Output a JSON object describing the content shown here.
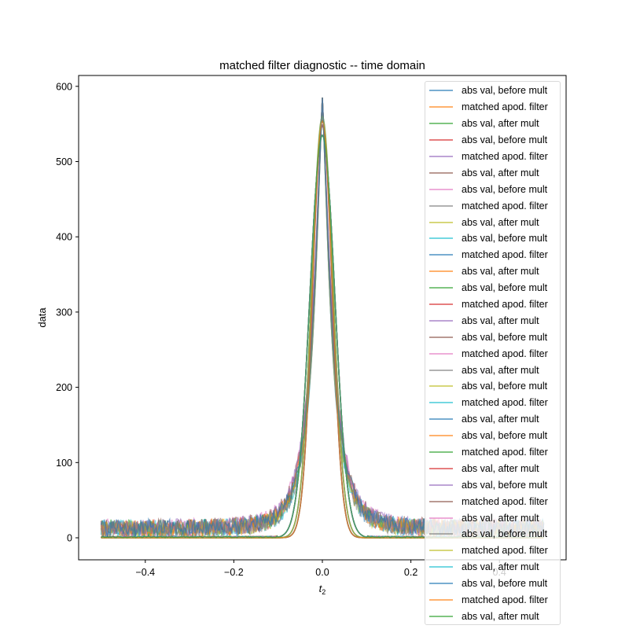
{
  "chart_data": {
    "type": "line",
    "title": "matched filter diagnostic -- time domain",
    "xlabel": "t_2",
    "ylabel": "data",
    "xlim": [
      -0.55,
      0.55
    ],
    "ylim": [
      -30,
      615
    ],
    "xticks": [
      -0.4,
      -0.2,
      0.0,
      0.2,
      0.4
    ],
    "xtick_labels": [
      "−0.4",
      "−0.2",
      "0.0",
      "0.2",
      "0.4"
    ],
    "yticks": [
      0,
      100,
      200,
      300,
      400,
      500,
      600
    ],
    "ytick_labels": [
      "0",
      "100",
      "200",
      "300",
      "400",
      "500",
      "600"
    ],
    "grid": false,
    "legend_position": "upper right (overflowing below axes)",
    "description": "11 repeated groups of 3 traces each; noisy Lorentzian-like 'abs val' traces peaking ~585 at t2=0 with noise floor ~0-30, and smooth Gaussian 'matched apod. filter' traces peaking ~540-560 with half width ~0.03-0.05",
    "x_range_data": [
      -0.5,
      0.5
    ],
    "series_template": [
      {
        "name": "abs val, before mult",
        "peak": 585,
        "center": 0.0,
        "shape": "noisy lorentzian",
        "noise_floor": [
          0,
          30
        ]
      },
      {
        "name": "matched apod. filter",
        "peak": 560,
        "center": 0.0,
        "shape": "gaussian",
        "sigma": 0.025
      },
      {
        "name": "abs val, after mult",
        "peak": 535,
        "center": 0.0,
        "shape": "gaussian-like",
        "sigma": 0.03
      }
    ],
    "series": [
      {
        "name": "abs val, before mult",
        "color": "#1f77b4"
      },
      {
        "name": "matched apod. filter",
        "color": "#ff7f0e"
      },
      {
        "name": "abs val, after mult",
        "color": "#2ca02c"
      },
      {
        "name": "abs val, before mult",
        "color": "#d62728"
      },
      {
        "name": "matched apod. filter",
        "color": "#9467bd"
      },
      {
        "name": "abs val, after mult",
        "color": "#8c564b"
      },
      {
        "name": "abs val, before mult",
        "color": "#e377c2"
      },
      {
        "name": "matched apod. filter",
        "color": "#7f7f7f"
      },
      {
        "name": "abs val, after mult",
        "color": "#bcbd22"
      },
      {
        "name": "abs val, before mult",
        "color": "#17becf"
      },
      {
        "name": "matched apod. filter",
        "color": "#1f77b4"
      },
      {
        "name": "abs val, after mult",
        "color": "#ff7f0e"
      },
      {
        "name": "abs val, before mult",
        "color": "#2ca02c"
      },
      {
        "name": "matched apod. filter",
        "color": "#d62728"
      },
      {
        "name": "abs val, after mult",
        "color": "#9467bd"
      },
      {
        "name": "abs val, before mult",
        "color": "#8c564b"
      },
      {
        "name": "matched apod. filter",
        "color": "#e377c2"
      },
      {
        "name": "abs val, after mult",
        "color": "#7f7f7f"
      },
      {
        "name": "abs val, before mult",
        "color": "#bcbd22"
      },
      {
        "name": "matched apod. filter",
        "color": "#17becf"
      },
      {
        "name": "abs val, after mult",
        "color": "#1f77b4"
      },
      {
        "name": "abs val, before mult",
        "color": "#ff7f0e"
      },
      {
        "name": "matched apod. filter",
        "color": "#2ca02c"
      },
      {
        "name": "abs val, after mult",
        "color": "#d62728"
      },
      {
        "name": "abs val, before mult",
        "color": "#9467bd"
      },
      {
        "name": "matched apod. filter",
        "color": "#8c564b"
      },
      {
        "name": "abs val, after mult",
        "color": "#e377c2"
      },
      {
        "name": "abs val, before mult",
        "color": "#7f7f7f"
      },
      {
        "name": "matched apod. filter",
        "color": "#bcbd22"
      },
      {
        "name": "abs val, after mult",
        "color": "#17becf"
      },
      {
        "name": "abs val, before mult",
        "color": "#1f77b4"
      },
      {
        "name": "matched apod. filter",
        "color": "#ff7f0e"
      },
      {
        "name": "abs val, after mult",
        "color": "#2ca02c"
      }
    ]
  },
  "chart": {
    "title": "matched filter diagnostic -- time domain",
    "ylabel": "data",
    "xlabel_main": "t",
    "xlabel_sub": "2"
  }
}
